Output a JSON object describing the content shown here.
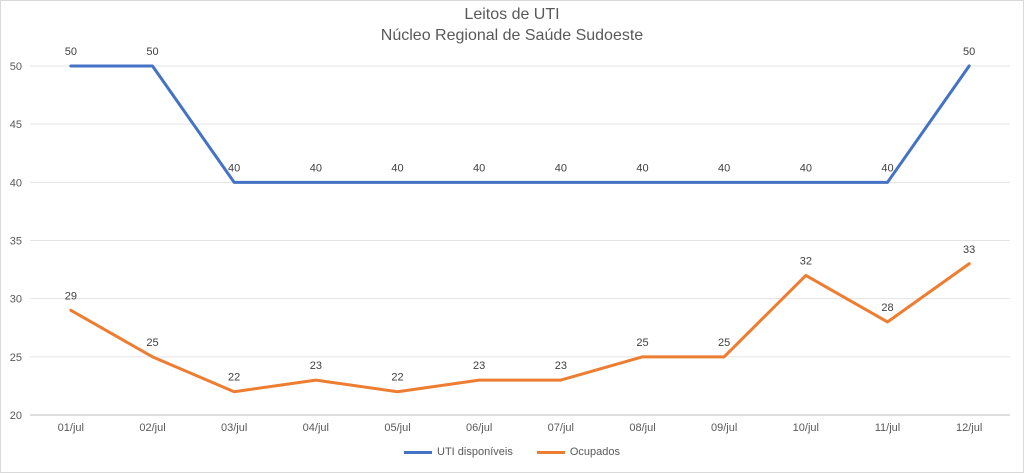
{
  "chart_data": {
    "type": "line",
    "title": "Leitos de UTI",
    "subtitle": "Núcleo Regional de Saúde Sudoeste",
    "categories": [
      "01/jul",
      "02/jul",
      "03/jul",
      "04/jul",
      "05/jul",
      "06/jul",
      "07/jul",
      "08/jul",
      "09/jul",
      "10/jul",
      "11/jul",
      "12/jul"
    ],
    "series": [
      {
        "name": "UTI disponíveis",
        "color": "#4472c4",
        "values": [
          50,
          50,
          40,
          40,
          40,
          40,
          40,
          40,
          40,
          40,
          40,
          50
        ]
      },
      {
        "name": "Ocupados",
        "color": "#ed7d31",
        "values": [
          29,
          25,
          22,
          23,
          22,
          23,
          23,
          25,
          25,
          32,
          28,
          33
        ]
      }
    ],
    "ylim": [
      20,
      50
    ],
    "yticks": [
      20,
      25,
      30,
      35,
      40,
      45,
      50
    ],
    "grid": true,
    "legend": "bottom",
    "data_labels": true
  }
}
